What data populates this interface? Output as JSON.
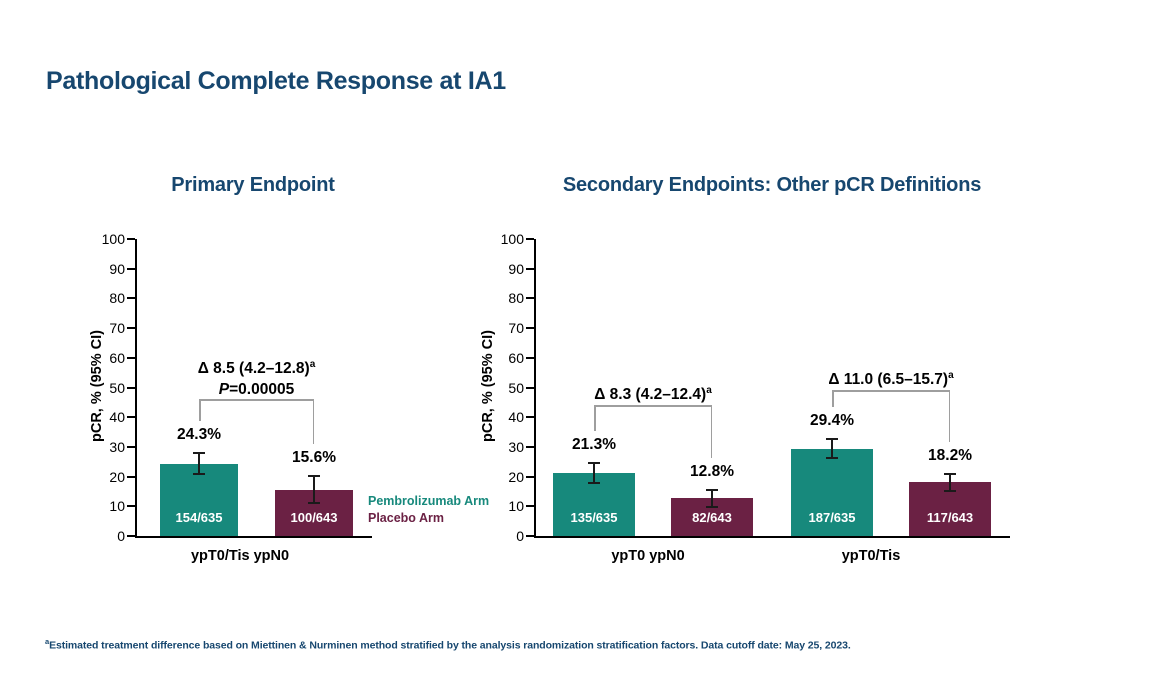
{
  "page": {
    "title": "Pathological Complete Response at IA1"
  },
  "colors": {
    "navy": "#17476F",
    "teal": "#17897C",
    "maroon": "#6B2144",
    "bracket_gray": "#9e9e9e",
    "error_bar": "#1a1a1a",
    "axis": "#000000",
    "bar_count_text": "#ffffff"
  },
  "legend": {
    "position": "between-charts",
    "items": [
      {
        "label": "Pembrolizumab Arm",
        "color_key": "teal"
      },
      {
        "label": "Placebo Arm",
        "color_key": "maroon"
      }
    ]
  },
  "footnote": {
    "sup": "a",
    "text": "Estimated treatment difference based on Miettinen & Nurminen method stratified by the analysis randomization stratification factors. Data cutoff date: May 25, 2023."
  },
  "chart_data": [
    {
      "type": "bar",
      "title": "Primary Endpoint",
      "xlabel": "",
      "ylabel": "pCR, % (95% CI)",
      "ylim": [
        0,
        100
      ],
      "ytick_step": 10,
      "grid": false,
      "categories": [
        "ypT0/Tis ypN0"
      ],
      "series": [
        {
          "name": "Pembrolizumab Arm",
          "color_key": "teal",
          "values": [
            24.3
          ],
          "value_labels": [
            "24.3%"
          ],
          "counts": [
            "154/635"
          ],
          "ci_low": [
            21.0
          ],
          "ci_high": [
            27.9
          ]
        },
        {
          "name": "Placebo Arm",
          "color_key": "maroon",
          "values": [
            15.6
          ],
          "value_labels": [
            "15.6%"
          ],
          "counts": [
            "100/643"
          ],
          "ci_low": [
            11.2
          ],
          "ci_high": [
            20.1
          ]
        }
      ],
      "comparisons": [
        {
          "group": 0,
          "delta_label": "Δ 8.5 (4.2–12.8)",
          "sup": "a",
          "p_label": "P=0.00005",
          "bracket_y": 46
        }
      ]
    },
    {
      "type": "bar",
      "title": "Secondary Endpoints: Other pCR Definitions",
      "xlabel": "",
      "ylabel": "pCR, % (95% CI)",
      "ylim": [
        0,
        100
      ],
      "ytick_step": 10,
      "grid": false,
      "categories": [
        "ypT0 ypN0",
        "ypT0/Tis"
      ],
      "series": [
        {
          "name": "Pembrolizumab Arm",
          "color_key": "teal",
          "values": [
            21.3,
            29.4
          ],
          "value_labels": [
            "21.3%",
            "29.4%"
          ],
          "counts": [
            "135/635",
            "187/635"
          ],
          "ci_low": [
            17.9,
            26.4
          ],
          "ci_high": [
            24.6,
            32.5
          ]
        },
        {
          "name": "Placebo Arm",
          "color_key": "maroon",
          "values": [
            12.8,
            18.2
          ],
          "value_labels": [
            "12.8%",
            "18.2%"
          ],
          "counts": [
            "82/643",
            "117/643"
          ],
          "ci_low": [
            9.8,
            15.2
          ],
          "ci_high": [
            15.4,
            21.0
          ]
        }
      ],
      "comparisons": [
        {
          "group": 0,
          "delta_label": "Δ 8.3 (4.2–12.4)",
          "sup": "a",
          "p_label": "",
          "bracket_y": 44
        },
        {
          "group": 1,
          "delta_label": "Δ 11.0 (6.5–15.7)",
          "sup": "a",
          "p_label": "",
          "bracket_y": 49
        }
      ]
    }
  ]
}
